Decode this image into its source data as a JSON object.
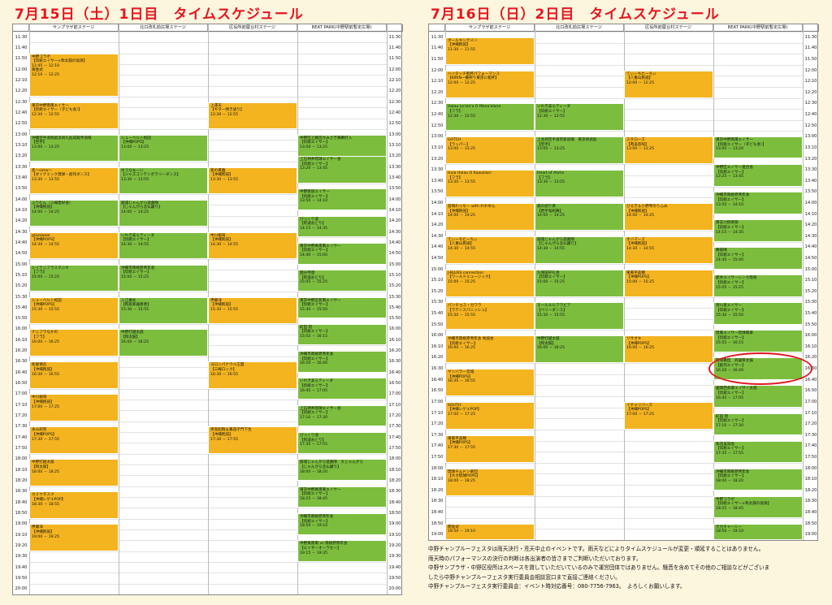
{
  "day1": {
    "title": "7月15日（土）1日目　タイムスケジュール",
    "stages": [
      "サンプラザ前ステージ",
      "北口改札前広場ステージ",
      "区役所前屋台村ステージ",
      "BEAT PARK(中野駅前暫定広場)"
    ],
    "start": "11:30",
    "end": "20:00",
    "times": [
      "11:30",
      "11:40",
      "11:50",
      "12:00",
      "12:10",
      "12:20",
      "12:30",
      "12:40",
      "12:50",
      "13:00",
      "13:10",
      "13:20",
      "13:30",
      "13:40",
      "13:50",
      "14:00",
      "14:10",
      "14:20",
      "14:30",
      "14:40",
      "14:50",
      "15:00",
      "15:10",
      "15:20",
      "15:30",
      "15:40",
      "15:50",
      "16:00",
      "16:10",
      "16:20",
      "16:30",
      "16:40",
      "16:50",
      "17:00",
      "17:10",
      "17:20",
      "17:30",
      "17:40",
      "17:50",
      "18:00",
      "18:10",
      "18:20",
      "18:30",
      "18:40",
      "18:50",
      "19:00",
      "19:10",
      "19:20",
      "19:30",
      "19:40",
      "19:50",
      "20:00"
    ],
    "events": [
      {
        "s": 0,
        "a": "11:45",
        "b": "12:25",
        "c": "o",
        "t": [
          "中野コラボ",
          "【伝統エイサー×和太鼓の協演】",
          "11:45 － 12:10",
          "黄金式",
          "12:10 － 12:25"
        ]
      },
      {
        "s": 0,
        "a": "12:30",
        "b": "12:55",
        "c": "o",
        "t": [
          "東京中野南風エイサー",
          "【伝統エイサー（子ども会）】",
          "12:30 － 12:55"
        ]
      },
      {
        "s": 0,
        "a": "13:00",
        "b": "13:25",
        "c": "g",
        "t": [
          "沖縄空手道剛柔流尚礼館成龍寺道場",
          "【空手】",
          "13:00 － 13:25"
        ]
      },
      {
        "s": 0,
        "a": "13:30",
        "b": "13:55",
        "c": "o",
        "t": [
          "島～sima～",
          "【ダイナミック琉球・創作ダンス】",
          "13:30 － 13:55"
        ]
      },
      {
        "s": 0,
        "a": "14:00",
        "b": "14:25",
        "c": "g",
        "t": [
          "ふりむん（三線愛好会）",
          "【沖縄民謡】",
          "14:00 － 14:25"
        ]
      },
      {
        "s": 0,
        "a": "14:30",
        "b": "14:55",
        "c": "o",
        "t": [
          "glazzwool",
          "【沖縄POPS】",
          "14:30 － 14:55"
        ]
      },
      {
        "s": 0,
        "a": "15:00",
        "b": "15:25",
        "c": "g",
        "t": [
          "レイナニフラスタジオ",
          "【フラ】",
          "15:00 － 15:25"
        ]
      },
      {
        "s": 0,
        "a": "15:30",
        "b": "15:55",
        "c": "o",
        "t": [
          "シューベルト松田",
          "【沖縄POPS】",
          "15:30 － 15:55"
        ]
      },
      {
        "s": 0,
        "a": "16:00",
        "b": "16:25",
        "c": "o",
        "t": [
          "ナニフラなかの",
          "【フラ】",
          "16:00 － 16:25"
        ]
      },
      {
        "s": 0,
        "a": "16:30",
        "b": "16:55",
        "c": "o",
        "t": [
          "松尾慎吾",
          "【沖縄民謡】",
          "16:30 － 16:55"
        ]
      },
      {
        "s": 0,
        "a": "17:00",
        "b": "17:25",
        "c": "o",
        "t": [
          "中川樹海",
          "【沖縄民謡】",
          "17:00 － 17:25"
        ]
      },
      {
        "s": 0,
        "a": "17:30",
        "b": "17:55",
        "c": "o",
        "t": [
          "永山莉克",
          "【沖縄POPS】",
          "17:30 － 17:55"
        ]
      },
      {
        "s": 0,
        "a": "18:00",
        "b": "18:25",
        "c": "o",
        "t": [
          "中野打越太鼓",
          "【和太鼓】",
          "18:00 － 18:25"
        ]
      },
      {
        "s": 0,
        "a": "18:30",
        "b": "18:55",
        "c": "o",
        "t": [
          "カミヤタスク",
          "【沖縄レゲエPOP】",
          "18:30 － 18:55"
        ]
      },
      {
        "s": 0,
        "a": "19:00",
        "b": "19:25",
        "c": "o",
        "t": [
          "伊藤洋",
          "【沖縄民謡】",
          "19:00 － 19:25"
        ]
      },
      {
        "s": 1,
        "a": "13:00",
        "b": "13:25",
        "c": "g",
        "t": [
          "シューベルト松田",
          "【沖縄POPS】",
          "13:00 － 13:25"
        ]
      },
      {
        "s": 1,
        "a": "13:30",
        "b": "13:55",
        "c": "g",
        "t": [
          "ゆうなぁーい",
          "【ジャズコンテンポラリーダンス】",
          "13:30 － 13:55"
        ]
      },
      {
        "s": 1,
        "a": "14:00",
        "b": "14:25",
        "c": "g",
        "t": [
          "鼓城じゃんがら遊劇隊",
          "【じゃんがら念仏踊り】",
          "14:00 － 14:25"
        ]
      },
      {
        "s": 1,
        "a": "14:30",
        "b": "14:55",
        "c": "g",
        "t": [
          "いわき美らティーダ",
          "【伝統エイサー】",
          "14:30 － 14:55"
        ]
      },
      {
        "s": 1,
        "a": "15:00",
        "b": "15:25",
        "c": "g",
        "t": [
          "沖縄市南桃原青年会",
          "【伝統エイサー】",
          "15:00 － 15:25"
        ]
      },
      {
        "s": 1,
        "a": "15:30",
        "b": "15:55",
        "c": "g",
        "t": [
          "入江槙太",
          "【民族楽器奏者】",
          "15:30 － 15:55"
        ]
      },
      {
        "s": 1,
        "a": "16:00",
        "b": "16:25",
        "c": "g",
        "t": [
          "中野打越太鼓",
          "【和太鼓】",
          "16:00 － 16:25"
        ]
      },
      {
        "s": 2,
        "a": "12:30",
        "b": "12:55",
        "c": "o",
        "t": [
          "上運天",
          "【ギター弾き語り】",
          "12:30 － 12:55"
        ]
      },
      {
        "s": 2,
        "a": "13:30",
        "b": "13:55",
        "c": "o",
        "t": [
          "紫の風雅",
          "【沖縄民謡】",
          "13:30 － 13:55"
        ]
      },
      {
        "s": 2,
        "a": "14:30",
        "b": "14:55",
        "c": "o",
        "t": [
          "中川樹海",
          "【沖縄民謡】",
          "14:30 － 14:55"
        ]
      },
      {
        "s": 2,
        "a": "15:30",
        "b": "15:55",
        "c": "o",
        "t": [
          "伊藤洋",
          "【沖縄民謡】",
          "15:30 － 15:55"
        ]
      },
      {
        "s": 2,
        "a": "16:30",
        "b": "16:55",
        "c": "o",
        "t": [
          "ヨロンパナウル王国",
          "【三線ロック】",
          "16:30 － 16:55"
        ]
      },
      {
        "s": 2,
        "a": "17:30",
        "b": "17:55",
        "c": "o",
        "t": [
          "男島紀稿＆鳳遊子門下生",
          "【沖縄民謡】",
          "17:30 － 17:55"
        ]
      },
      {
        "s": 3,
        "a": "13:00",
        "b": "13:25",
        "c": "g",
        "t": [
          "中野区上臈宮かみさぎ舞獅打入",
          "【伝統エイサー】",
          "13:00 － 13:25"
        ]
      },
      {
        "s": 3,
        "a": "13:20",
        "b": "13:45",
        "c": "g",
        "t": [
          "上石神井琉球エイサー会",
          "【伝統エイサー】",
          "13:20 － 13:45"
        ]
      },
      {
        "s": 3,
        "a": "13:50",
        "b": "14:10",
        "c": "g",
        "t": [
          "中野新道エイサー",
          "【伝統エイサー】",
          "13:50 － 14:10"
        ]
      },
      {
        "s": 3,
        "a": "14:15",
        "b": "14:35",
        "c": "g",
        "t": [
          "びっくり道",
          "【阿波おどり】",
          "14:15 － 14:35"
        ]
      },
      {
        "s": 3,
        "a": "14:40",
        "b": "15:00",
        "c": "g",
        "t": [
          "東京中野真南風エイサー",
          "【伝統エイサー】",
          "14:40 － 15:00"
        ]
      },
      {
        "s": 3,
        "a": "15:05",
        "b": "15:25",
        "c": "g",
        "t": [
          "国分寺連",
          "【阿波おどり】",
          "15:05 － 15:25"
        ]
      },
      {
        "s": 3,
        "a": "15:30",
        "b": "15:50",
        "c": "g",
        "t": [
          "東京中野区新風エイサー",
          "【伝統エイサー】",
          "15:30 － 15:50"
        ]
      },
      {
        "s": 3,
        "a": "15:55",
        "b": "16:15",
        "c": "g",
        "t": [
          "町田 琉",
          "【伝統エイサー】",
          "15:55 － 16:15"
        ]
      },
      {
        "s": 3,
        "a": "16:20",
        "b": "16:40",
        "c": "g",
        "t": [
          "沖縄市南桃原青年会",
          "【伝統エイサー】",
          "16:20 － 16:40"
        ]
      },
      {
        "s": 3,
        "a": "16:45",
        "b": "17:05",
        "c": "g",
        "t": [
          "いわき美らティーダ",
          "【伝統エイサー】",
          "16:45 － 17:05"
        ]
      },
      {
        "s": 3,
        "a": "17:10",
        "b": "17:30",
        "c": "g",
        "t": [
          "上石神井琉球エイサー会",
          "【伝統エイサー】",
          "17:10 － 17:30"
        ]
      },
      {
        "s": 3,
        "a": "17:35",
        "b": "17:55",
        "c": "g",
        "t": [
          "びっくり道",
          "【阿波おどり】",
          "17:35 － 17:55"
        ]
      },
      {
        "s": 3,
        "a": "18:00",
        "b": "18:20",
        "c": "g",
        "t": [
          "鼓城じゃんがら遊劇隊　大じゃんがら",
          "【じゃんがら念仏踊り】",
          "18:00 － 18:20"
        ]
      },
      {
        "s": 3,
        "a": "18:25",
        "b": "18:45",
        "c": "g",
        "t": [
          "東京中野真南風エイサー",
          "【伝統エイサー】",
          "18:25 － 18:45"
        ]
      },
      {
        "s": 3,
        "a": "18:50",
        "b": "19:10",
        "c": "g",
        "t": [
          "沖縄市南桃原青年会",
          "【伝統エイサー】",
          "18:50 － 19:10"
        ]
      },
      {
        "s": 3,
        "a": "19:15",
        "b": "19:35",
        "c": "g",
        "t": [
          "中野真南風 vs 南桃原青年会",
          "【エイサーオーラセー】",
          "19:15 － 19:35"
        ]
      }
    ]
  },
  "day2": {
    "title": "7月16日（日）2日目　タイムスケジュール",
    "stages": [
      "サンプラザ前ステージ",
      "北口改札前広場ステージ",
      "区役所前屋台村ステージ",
      "BEAT PARK(中野駅前暫定広場)"
    ],
    "start": "11:30",
    "end": "19:00",
    "times": [
      "11:30",
      "11:40",
      "11:50",
      "12:00",
      "12:10",
      "12:20",
      "12:30",
      "12:40",
      "12:50",
      "13:00",
      "13:10",
      "13:20",
      "13:30",
      "13:40",
      "13:50",
      "14:00",
      "14:10",
      "14:20",
      "14:30",
      "14:40",
      "14:50",
      "15:00",
      "15:10",
      "15:20",
      "15:30",
      "15:40",
      "15:50",
      "16:00",
      "16:10",
      "16:20",
      "16:30",
      "16:40",
      "16:50",
      "17:00",
      "17:10",
      "17:20",
      "17:30",
      "17:40",
      "17:50",
      "18:00",
      "18:10",
      "18:20",
      "18:30",
      "18:40",
      "18:50",
      "19:00"
    ],
    "events": [
      {
        "s": 0,
        "a": "11:30",
        "b": "11:55",
        "c": "o",
        "t": [
          "ボールキングメン",
          "【沖縄民謡】",
          "11:30 － 11:55"
        ]
      },
      {
        "s": 0,
        "a": "12:00",
        "b": "12:25",
        "c": "o",
        "t": [
          "ハイタッチ乾杯パフォーマンス",
          "【KIRIN一番搾り東京に乾杯】",
          "12:00 － 12:25"
        ]
      },
      {
        "s": 0,
        "a": "12:30",
        "b": "12:55",
        "c": "g",
        "t": [
          "Halau Le'ale'a O Mana'olana",
          "【フラ】",
          "12:30 － 12:55"
        ]
      },
      {
        "s": 0,
        "a": "13:00",
        "b": "13:25",
        "c": "o",
        "t": [
          "GOTCH",
          "【ラッパー】",
          "13:00 － 13:25"
        ]
      },
      {
        "s": 0,
        "a": "13:30",
        "b": "13:55",
        "c": "o",
        "t": [
          "Hula Halau O Kawailani",
          "【フラ】",
          "13:30 － 13:55"
        ]
      },
      {
        "s": 0,
        "a": "14:00",
        "b": "14:25",
        "c": "o",
        "t": [
          "島唄わっちー with わわゆん",
          "【沖縄民謡】",
          "14:00 － 14:25"
        ]
      },
      {
        "s": 0,
        "a": "14:30",
        "b": "14:55",
        "c": "o",
        "t": [
          "てぃーちたーちぃ",
          "【八重山民謡】",
          "14:30 － 14:55"
        ]
      },
      {
        "s": 0,
        "a": "15:00",
        "b": "15:25",
        "c": "o",
        "t": [
          "J-BLUES connection",
          "【ワールドミュージック】",
          "15:00 － 15:25"
        ]
      },
      {
        "s": 0,
        "a": "15:30",
        "b": "15:55",
        "c": "o",
        "t": [
          "パンチョス・ガワラ",
          "【ラテンスパニッシュ】",
          "15:30 － 15:55"
        ]
      },
      {
        "s": 0,
        "a": "16:00",
        "b": "16:25",
        "c": "o",
        "t": [
          "沖縄市南桃原青年会 地謡会",
          "【伝統エイサー】",
          "16:00 － 16:25"
        ]
      },
      {
        "s": 0,
        "a": "16:30",
        "b": "16:55",
        "c": "o",
        "t": [
          "ヤンバラー宮城",
          "【沖縄POPS】",
          "16:30 － 16:55"
        ]
      },
      {
        "s": 0,
        "a": "17:00",
        "b": "17:25",
        "c": "o",
        "t": [
          "SOUTH",
          "【沖縄レゲエPOP】",
          "17:00 － 17:25"
        ]
      },
      {
        "s": 0,
        "a": "17:30",
        "b": "17:55",
        "c": "o",
        "t": [
          "東風平美穂",
          "【沖縄POPS】",
          "17:30 － 17:55"
        ]
      },
      {
        "s": 0,
        "a": "18:00",
        "b": "18:25",
        "c": "o",
        "t": [
          "琉球チムドン楽団",
          "【ネオ琉球POPS】",
          "18:00 － 18:25"
        ]
      },
      {
        "s": 0,
        "a": "18:50",
        "b": "19:10",
        "c": "o",
        "t": [
          "閉会式",
          "18:50 － 19:10"
        ]
      },
      {
        "s": 1,
        "a": "12:30",
        "b": "12:55",
        "c": "g",
        "t": [
          "いわき美らティーダ",
          "【伝統エイサー】",
          "12:30 － 12:55"
        ]
      },
      {
        "s": 1,
        "a": "13:00",
        "b": "13:25",
        "c": "g",
        "t": [
          "上池袋空手道宗家道場　東京修武館",
          "【空手】",
          "13:00 － 13:25"
        ]
      },
      {
        "s": 1,
        "a": "13:30",
        "b": "13:55",
        "c": "g",
        "t": [
          "Heart of Aloha",
          "【フラ】",
          "13:30 － 13:55"
        ]
      },
      {
        "s": 1,
        "a": "14:00",
        "b": "14:25",
        "c": "g",
        "t": [
          "森の語り衆",
          "【岩手鬼剣舞】",
          "14:00 － 14:25"
        ]
      },
      {
        "s": 1,
        "a": "14:30",
        "b": "14:55",
        "c": "g",
        "t": [
          "鼓城じゃんがら遊劇隊",
          "【じゃんがら念仏踊り】",
          "14:30 － 14:55"
        ]
      },
      {
        "s": 1,
        "a": "15:00",
        "b": "15:25",
        "c": "g",
        "t": [
          "久保田守礼会",
          "【伝統エイサー】",
          "15:00 － 15:25"
        ]
      },
      {
        "s": 1,
        "a": "15:30",
        "b": "15:55",
        "c": "g",
        "t": [
          "ヌールエルアラビア",
          "【ベリーダンス】",
          "15:30 － 15:55"
        ]
      },
      {
        "s": 1,
        "a": "16:00",
        "b": "16:25",
        "c": "g",
        "t": [
          "中野打越太鼓",
          "【和太鼓】",
          "16:00 － 16:25"
        ]
      },
      {
        "s": 2,
        "a": "12:00",
        "b": "12:25",
        "c": "o",
        "t": [
          "てぃーちたーちぃ",
          "【八重山民謡】",
          "12:00 － 12:25"
        ]
      },
      {
        "s": 2,
        "a": "13:00",
        "b": "13:25",
        "c": "o",
        "t": [
          "スタローズ",
          "【奄美島唄】",
          "13:00 － 13:25"
        ]
      },
      {
        "s": 2,
        "a": "14:00",
        "b": "14:25",
        "c": "o",
        "t": [
          "ひるぎ＆小野寺のりふみ",
          "【沖縄民謡】",
          "14:00 － 14:25"
        ]
      },
      {
        "s": 2,
        "a": "14:30",
        "b": "14:55",
        "c": "o",
        "t": [
          "オバマーズ",
          "【沖縄民謡】",
          "14:30 － 14:55"
        ]
      },
      {
        "s": 2,
        "a": "15:00",
        "b": "15:25",
        "c": "o",
        "t": [
          "東風平美穂",
          "【沖縄POPS】",
          "15:00 － 15:25"
        ]
      },
      {
        "s": 2,
        "a": "16:00",
        "b": "16:25",
        "c": "o",
        "t": [
          "リサオキ",
          "【沖縄POPS】",
          "16:00 － 16:25"
        ]
      },
      {
        "s": 2,
        "a": "17:00",
        "b": "17:25",
        "c": "o",
        "t": [
          "イチャリバーズ",
          "【沖縄POPS】",
          "17:00 － 17:25"
        ]
      },
      {
        "s": 3,
        "a": "13:00",
        "b": "13:20",
        "c": "g",
        "t": [
          "東京中野南風エイサー",
          "【伝統エイサー（子ども会）】",
          "13:00 － 13:20"
        ]
      },
      {
        "s": 3,
        "a": "13:25",
        "b": "13:45",
        "c": "g",
        "t": [
          "中野区エイサー連合会",
          "【伝統エイサー】",
          "13:25 － 13:45"
        ]
      },
      {
        "s": 3,
        "a": "13:50",
        "b": "14:10",
        "c": "g",
        "t": [
          "沖縄市南桃原青年会",
          "【伝統エイサー】",
          "13:50 － 14:10"
        ]
      },
      {
        "s": 3,
        "a": "14:15",
        "b": "14:35",
        "c": "g",
        "t": [
          "異志川倶楽部",
          "【伝統エイサー】",
          "14:15 － 14:35"
        ]
      },
      {
        "s": 3,
        "a": "14:40",
        "b": "15:00",
        "c": "g",
        "t": [
          "舞鼓隊",
          "【伝統エイサー】",
          "14:40 － 15:00"
        ]
      },
      {
        "s": 3,
        "a": "15:05",
        "b": "15:25",
        "c": "g",
        "t": [
          "栃木エイサーシンカ琉和",
          "【伝統エイサー】",
          "15:05 － 15:25"
        ]
      },
      {
        "s": 3,
        "a": "15:30",
        "b": "15:50",
        "c": "g",
        "t": [
          "湊川星エイサー",
          "【伝統エイサー】",
          "15:30 － 15:50"
        ]
      },
      {
        "s": 3,
        "a": "15:55",
        "b": "16:15",
        "c": "g",
        "t": [
          "琉風エイサー琉球風車",
          "【伝統エイサー】",
          "15:55 － 16:15"
        ]
      },
      {
        "s": 3,
        "a": "16:20",
        "b": "16:40",
        "c": "g",
        "t": [
          "琉球舞団　昇龍祭太鼓",
          "【創作エイサー】",
          "16:20 － 16:40"
        ]
      },
      {
        "s": 3,
        "a": "16:45",
        "b": "17:05",
        "c": "g",
        "t": [
          "國頭西多摩エイサー太鼓",
          "【伝統エイサー】",
          "16:45 － 17:05"
        ]
      },
      {
        "s": 3,
        "a": "17:10",
        "b": "17:30",
        "c": "g",
        "t": [
          "町田 琉",
          "【伝統エイサー】",
          "17:10 － 17:30"
        ]
      },
      {
        "s": 3,
        "a": "17:35",
        "b": "17:55",
        "c": "g",
        "t": [
          "和花美常会",
          "【伝統エイサー】",
          "17:35 － 17:55"
        ]
      },
      {
        "s": 3,
        "a": "18:00",
        "b": "18:20",
        "c": "g",
        "t": [
          "沖縄市南桃原青年会",
          "【伝統エイサー】",
          "18:00 － 18:20"
        ]
      },
      {
        "s": 3,
        "a": "18:25",
        "b": "18:45",
        "c": "g",
        "t": [
          "中野コラボ",
          "【伝統エイサー×和太鼓の協演】",
          "18:25 － 18:45"
        ]
      },
      {
        "s": 3,
        "a": "18:50",
        "b": "19:10",
        "c": "g",
        "t": [
          "大力チャーシー",
          "18:50 － 19:10"
        ]
      }
    ],
    "notes": [
      "中野チャンプルーフェスタは雨天決行・荒天中止のイベントです。雨天などによりタイムスケジュールが変更・順延することはありません。",
      "雨天時のパフォーマンスの決行の判断は各出演者の皆さまでご判断いただいております。",
      "中野サンプラザ・中野区役所はスペースを貸していただいているのみで運営団体ではありません。騒音を含めてその他のご相談などがございま",
      "したら中野チャンプルーフェスタ実行委員会相談窓口まで直接ご連絡ください。",
      "中野チャンプルーフェスタ実行委員会：イベント時対応番号：080-7756-7963。　よろしくお願いします。"
    ]
  },
  "highlight_color": "#e0171f"
}
